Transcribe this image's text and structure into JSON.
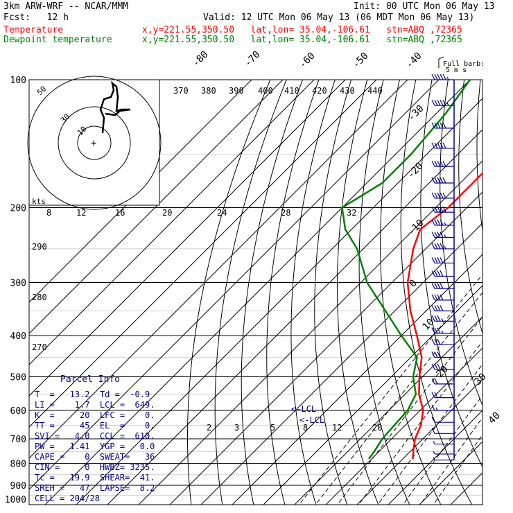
{
  "header": {
    "model": "3km ARW-WRF -- NCAR/MMM",
    "init": "Init: 00 UTC Mon 06 May 13",
    "fcst": "Fcst:   12 h",
    "valid": "Valid: 12 UTC Mon 06 May 13 (06 MDT Mon 06 May 13)",
    "temp_label": "Temperature",
    "dew_label": "Dewpoint temperature",
    "temp_info": "x,y=221.55,350.50   lat,lon= 35.04,-106.61   stn=ABQ ,72365",
    "dew_info": "x,y=221.55,350.50   lat,lon= 35.04,-106.61   stn=ABQ ,72365"
  },
  "colors": {
    "temperature": "#ff0000",
    "dewpoint": "#008000",
    "parcel": "#00008b",
    "isobar": "#000000",
    "wind_barbs": "#00008b"
  },
  "barb_title": [
    "Full barb:",
    "5 m s"
  ],
  "hodograph": {
    "unit": "kts",
    "ring_labels": [
      "50",
      "30",
      "10"
    ],
    "cross": "+"
  },
  "parcel_info": {
    "title": "Parcel Info",
    "rows": [
      "T  =   13.2  Td =  -0.9",
      "LI =    1.7  LCL =  649.",
      "K  =     20  LFC =    0.",
      "TT =     45  EL  =    0.",
      "SVI =   4.0  CCL =  610.",
      "PW =   1.41  YGP =   0.0",
      "CAPE =    0  SWEAT=   36",
      "CIN =     0  HWBZ= 3235.",
      "Tc =   19.9  SHEAR=  41.",
      "SREH =   47  LAPSE=  8.2",
      "CELL = 204/28"
    ]
  },
  "lcl_labels": [
    "<-LCL",
    "<-LCL"
  ],
  "chart_data": {
    "type": "line",
    "title": "",
    "xlabel": "",
    "ylabel": "",
    "y_scale": "log pressure",
    "ylim": [
      1000,
      100
    ],
    "pressure_ticks": [
      "100",
      "200",
      "300",
      "400",
      "500",
      "600",
      "700",
      "800",
      "900",
      "1000"
    ],
    "isotherm_labels": [
      "-80",
      "-70",
      "-60",
      "-50",
      "-40",
      "-30",
      "-20",
      "-10",
      "0",
      "10",
      "20",
      "30",
      "40"
    ],
    "theta_labels": [
      "370",
      "380",
      "390",
      "400",
      "410",
      "420",
      "430",
      "440",
      "290",
      "280",
      "270"
    ],
    "mixing_ratio_labels_upper": [
      "8",
      "12",
      "16",
      "20",
      "24",
      "28",
      "32"
    ],
    "mixing_ratio_labels_lower": [
      "2",
      "3",
      "5",
      "8",
      "12",
      "20"
    ],
    "grid": true,
    "series": [
      {
        "name": "Temperature",
        "color": "#ff0000",
        "points": [
          [
            100,
            -63
          ],
          [
            120,
            -58
          ],
          [
            150,
            -56
          ],
          [
            175,
            -56
          ],
          [
            200,
            -56
          ],
          [
            225,
            -58
          ],
          [
            250,
            -54
          ],
          [
            300,
            -45
          ],
          [
            350,
            -35
          ],
          [
            400,
            -25
          ],
          [
            450,
            -16.5
          ],
          [
            500,
            -11
          ],
          [
            550,
            -5.5
          ],
          [
            600,
            1
          ],
          [
            650,
            5
          ],
          [
            700,
            7.5
          ],
          [
            750,
            11
          ],
          [
            780,
            13.2
          ]
        ]
      },
      {
        "name": "Dewpoint temperature",
        "color": "#008000",
        "points": [
          [
            100,
            -90
          ],
          [
            120,
            -87
          ],
          [
            150,
            -85
          ],
          [
            175,
            -85
          ],
          [
            200,
            -90
          ],
          [
            225,
            -82
          ],
          [
            250,
            -72
          ],
          [
            300,
            -58
          ],
          [
            350,
            -43
          ],
          [
            400,
            -30
          ],
          [
            450,
            -18
          ],
          [
            500,
            -13
          ],
          [
            550,
            -6.5
          ],
          [
            600,
            -4
          ],
          [
            650,
            -3.5
          ],
          [
            700,
            -3
          ],
          [
            750,
            -1.5
          ],
          [
            780,
            -0.9
          ]
        ]
      }
    ],
    "wind_barbs": {
      "unit": "m s-1",
      "levels": [
        100,
        115,
        130,
        145,
        160,
        175,
        190,
        205,
        220,
        235,
        250,
        270,
        290,
        310,
        330,
        350,
        370,
        395,
        420,
        450,
        480,
        520,
        560,
        600,
        640,
        680,
        720,
        760,
        785
      ],
      "speed": [
        28,
        28,
        27,
        27,
        26,
        26,
        25,
        25,
        24,
        24,
        23,
        22,
        22,
        21,
        21,
        20,
        19,
        18,
        17,
        16,
        15,
        12,
        10,
        8,
        6,
        5,
        3,
        3,
        3
      ],
      "direction": [
        260,
        260,
        260,
        262,
        262,
        262,
        264,
        264,
        265,
        265,
        265,
        266,
        266,
        266,
        268,
        268,
        268,
        270,
        270,
        270,
        270,
        270,
        268,
        268,
        250,
        220,
        200,
        190,
        180
      ]
    }
  }
}
